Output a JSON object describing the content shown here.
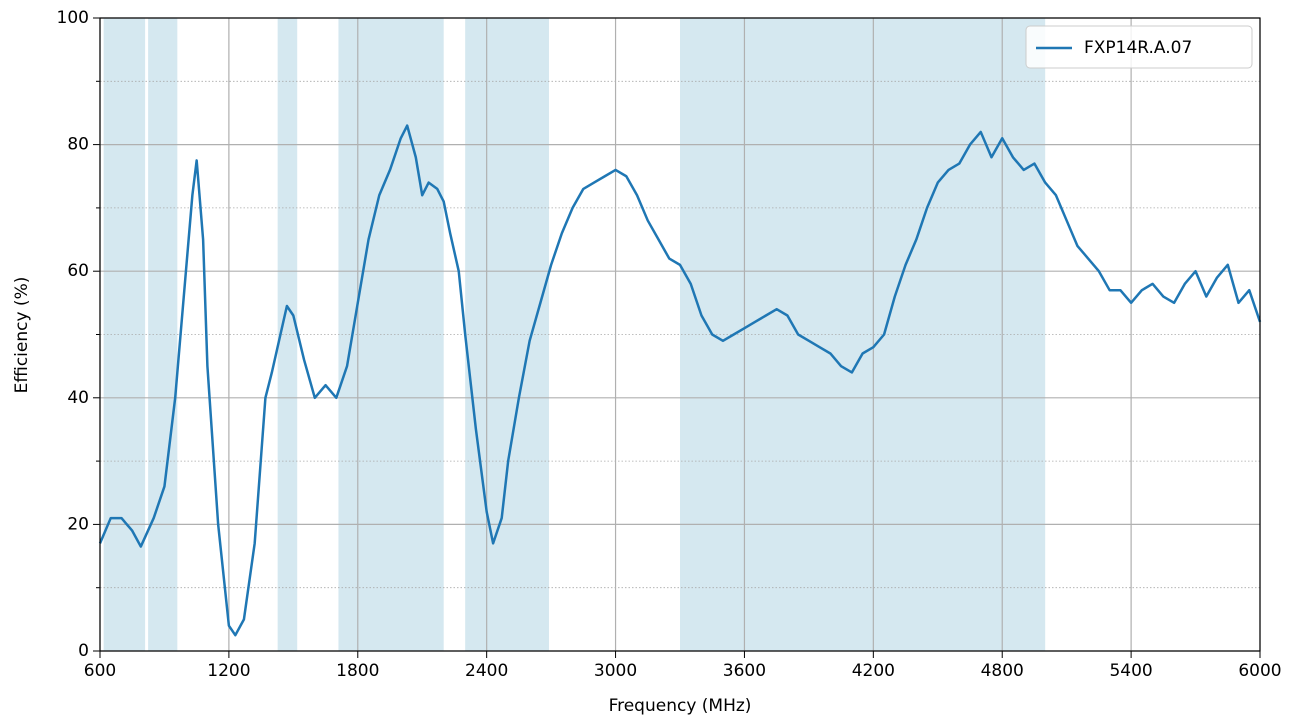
{
  "chart_data": {
    "type": "line",
    "xlabel": "Frequency (MHz)",
    "ylabel": "Efficiency (%)",
    "x": [
      600,
      650,
      700,
      750,
      790,
      850,
      900,
      950,
      1000,
      1030,
      1050,
      1080,
      1100,
      1150,
      1200,
      1230,
      1270,
      1320,
      1370,
      1400,
      1440,
      1470,
      1500,
      1550,
      1600,
      1650,
      1700,
      1750,
      1800,
      1850,
      1900,
      1950,
      2000,
      2030,
      2070,
      2100,
      2130,
      2170,
      2200,
      2230,
      2270,
      2300,
      2350,
      2400,
      2430,
      2470,
      2500,
      2550,
      2600,
      2650,
      2700,
      2750,
      2800,
      2850,
      2900,
      2950,
      3000,
      3050,
      3100,
      3150,
      3200,
      3250,
      3300,
      3350,
      3400,
      3450,
      3500,
      3550,
      3600,
      3650,
      3700,
      3750,
      3800,
      3850,
      3900,
      3950,
      4000,
      4050,
      4100,
      4150,
      4200,
      4250,
      4300,
      4350,
      4400,
      4450,
      4500,
      4550,
      4600,
      4650,
      4700,
      4750,
      4800,
      4850,
      4900,
      4950,
      5000,
      5050,
      5100,
      5150,
      5200,
      5250,
      5300,
      5350,
      5400,
      5450,
      5500,
      5550,
      5600,
      5650,
      5700,
      5750,
      5800,
      5850,
      5900,
      5950,
      6000
    ],
    "series": [
      {
        "name": "FXP14R.A.07",
        "color": "#1f77b4",
        "values": [
          17,
          21,
          21,
          19,
          16.5,
          21,
          26,
          40,
          60,
          72,
          77.5,
          65,
          45,
          20,
          4,
          2.5,
          5,
          17,
          40,
          44,
          50,
          54.5,
          53,
          46,
          40,
          42,
          40,
          45,
          55,
          65,
          72,
          76,
          81,
          83,
          78,
          72,
          74,
          73,
          71,
          66,
          60,
          50,
          35,
          22,
          17,
          21,
          30,
          40,
          49,
          55,
          61,
          66,
          70,
          73,
          74,
          75,
          76,
          75,
          72,
          68,
          65,
          62,
          61,
          58,
          53,
          50,
          49,
          50,
          51,
          52,
          53,
          54,
          53,
          50,
          49,
          48,
          47,
          45,
          44,
          47,
          48,
          50,
          56,
          61,
          65,
          70,
          74,
          76,
          77,
          80,
          82,
          78,
          81,
          78,
          76,
          77,
          74,
          72,
          68,
          64,
          62,
          60,
          57,
          57,
          55,
          57,
          58,
          56,
          55,
          58,
          60,
          56,
          59,
          61,
          55,
          57,
          52
        ]
      }
    ],
    "bands": [
      [
        617,
        810
      ],
      [
        824,
        960
      ],
      [
        1427,
        1518
      ],
      [
        1710,
        2200
      ],
      [
        2300,
        2690
      ],
      [
        3300,
        5000
      ]
    ],
    "band_color": "#d5e8f0",
    "xlim": [
      600,
      6000
    ],
    "xticks": [
      600,
      1200,
      1800,
      2400,
      3000,
      3600,
      4200,
      4800,
      5400,
      6000
    ],
    "ylim": [
      0,
      100
    ],
    "yticks": [
      0,
      20,
      40,
      60,
      80,
      100
    ],
    "yminorticks": [
      10,
      30,
      50,
      70,
      90
    ],
    "grid": true,
    "legend": "upper right"
  }
}
